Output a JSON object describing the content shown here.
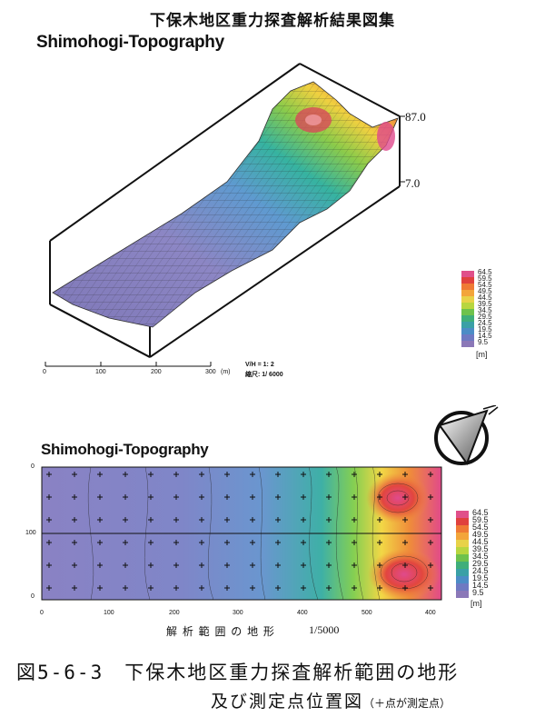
{
  "header": {
    "title": "下保木地区重力探査解析結果図集"
  },
  "top_map": {
    "title": "Shimohogi-Topography",
    "z_top": "87.0",
    "z_bottom": "7.0",
    "scale_ticks": [
      "0",
      "100",
      "200",
      "300"
    ],
    "scale_unit": "(m)",
    "vh_ratio": "V/H = 1:      2",
    "scale_ratio": "縮尺: 1/  6000",
    "legend": {
      "labels": [
        "64.5",
        "59.5",
        "54.5",
        "49.5",
        "44.5",
        "39.5",
        "34.5",
        "29.5",
        "24.5",
        "19.5",
        "14.5",
        "9.5"
      ],
      "unit": "[m]",
      "colors": [
        "#e0508a",
        "#e0413e",
        "#ef7a35",
        "#f3a53a",
        "#e8d248",
        "#b8d63f",
        "#6ec24c",
        "#3fae7a",
        "#3aa0a6",
        "#4c8cc6",
        "#6e79c2",
        "#8b78b8"
      ]
    }
  },
  "bottom_map": {
    "title": "Shimohogi-Topography",
    "x_ticks": [
      "0",
      "100",
      "200",
      "300",
      "400",
      "500",
      "400"
    ],
    "y_ticks": [
      "0",
      "100",
      "0"
    ],
    "caption_label": "解 析 範 囲 の 地 形",
    "caption_scale": "1/5000",
    "legend": {
      "labels": [
        "64.5",
        "59.5",
        "54.5",
        "49.5",
        "44.5",
        "39.5",
        "34.5",
        "29.5",
        "24.5",
        "19.5",
        "14.5",
        "9.5"
      ],
      "unit": "[m]"
    }
  },
  "figure_caption": {
    "line1": "図5-6-3　下保木地区重力探査解析範囲の地形",
    "line2": "及び測定点位置図",
    "note": "（＋点が測定点）"
  }
}
